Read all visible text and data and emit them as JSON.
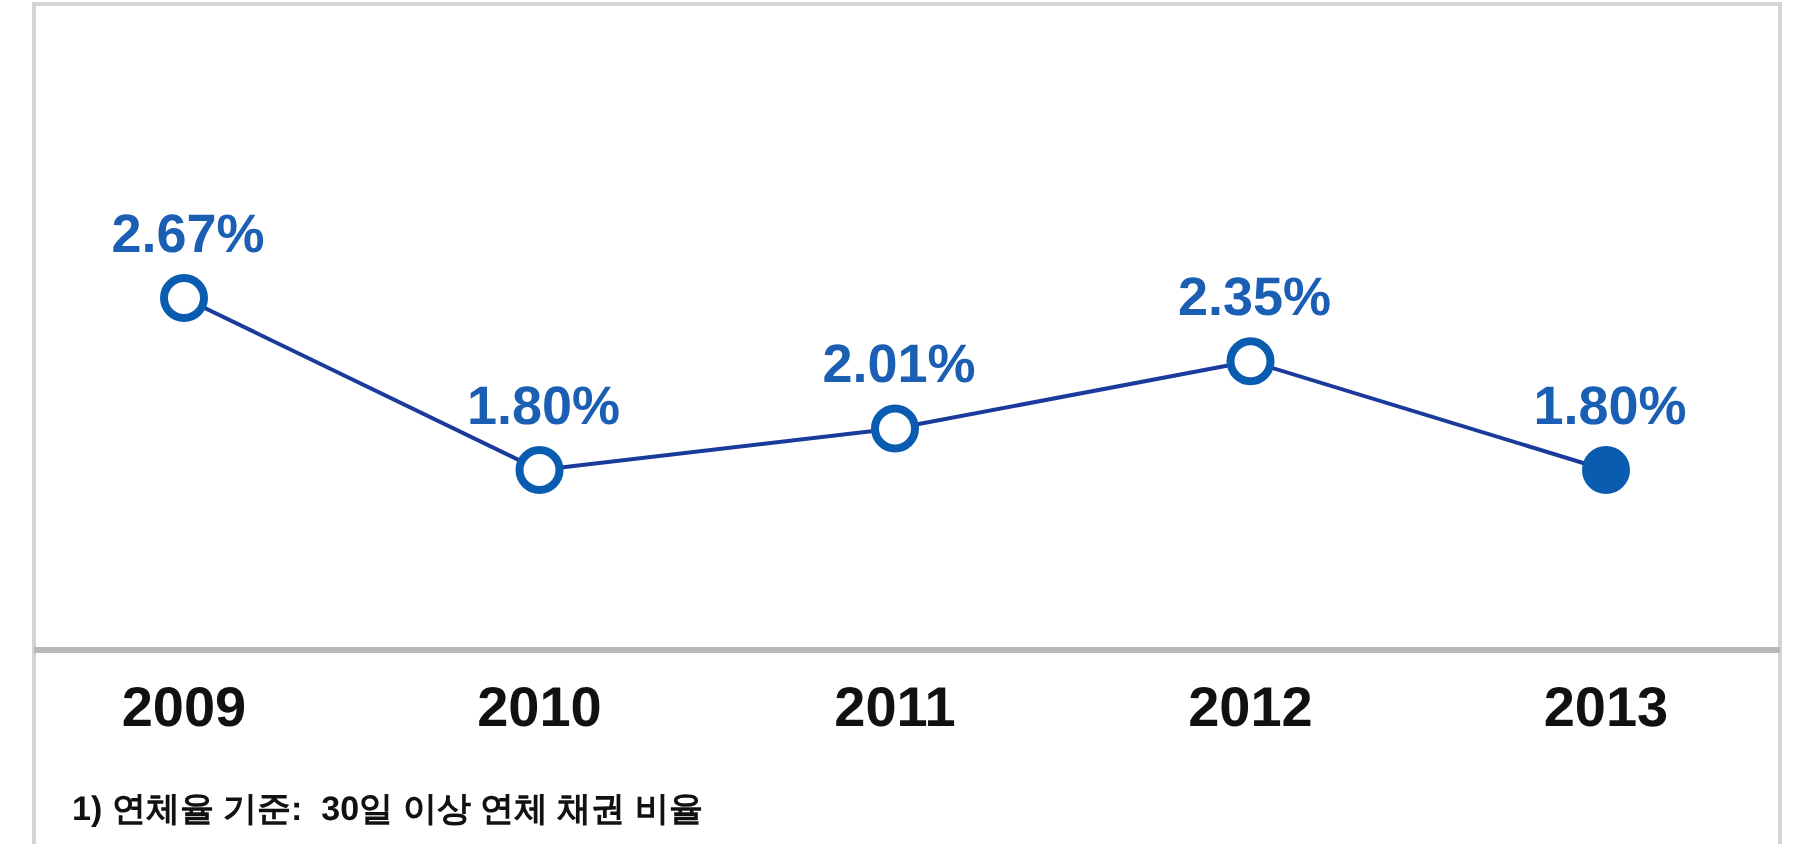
{
  "chart_data": {
    "type": "line",
    "categories": [
      "2009",
      "2010",
      "2011",
      "2012",
      "2013"
    ],
    "series": [
      {
        "color": "#1a3a9c",
        "values": [
          2.67,
          1.8,
          2.01,
          2.35,
          1.8
        ],
        "value_labels": [
          "2.67%",
          "1.80%",
          "2.01%",
          "2.35%",
          "1.80%"
        ],
        "colors": [
          "#ffffff",
          "#ffffff",
          "#ffffff",
          "#ffffff",
          "#0a5cb0"
        ]
      }
    ],
    "marker": "circle",
    "line_style": "solid",
    "tick_labels": "x",
    "annotations": [
      "1) 연체율 기준:  30일 이상 연체 채권 비율"
    ]
  }
}
